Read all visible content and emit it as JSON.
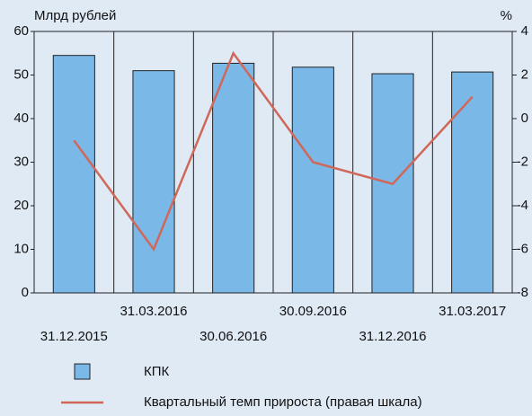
{
  "chart_data": {
    "type": "bar_line",
    "y_label": "Млрд рублей",
    "y2_label": "%",
    "categories": [
      "31.12.2015",
      "31.03.2016",
      "30.06.2016",
      "30.09.2016",
      "31.12.2016",
      "31.03.2017"
    ],
    "series": [
      {
        "name": "КПК",
        "type": "bar",
        "color": "#7ab8e8",
        "values": [
          54.5,
          51,
          52.7,
          51.8,
          50.3,
          50.7
        ]
      },
      {
        "name": "Квартальный темп прироста (правая шкала)",
        "type": "line",
        "axis": "y2",
        "color": "#d0685a",
        "values": [
          -1,
          -6,
          3,
          -2,
          -3,
          1
        ]
      }
    ],
    "ylim": [
      0,
      60
    ],
    "yticks": [
      0,
      10,
      20,
      30,
      40,
      50,
      60
    ],
    "y2lim": [
      -8,
      4
    ],
    "y2ticks": [
      -8,
      -6,
      -4,
      -2,
      0,
      2,
      4
    ]
  }
}
